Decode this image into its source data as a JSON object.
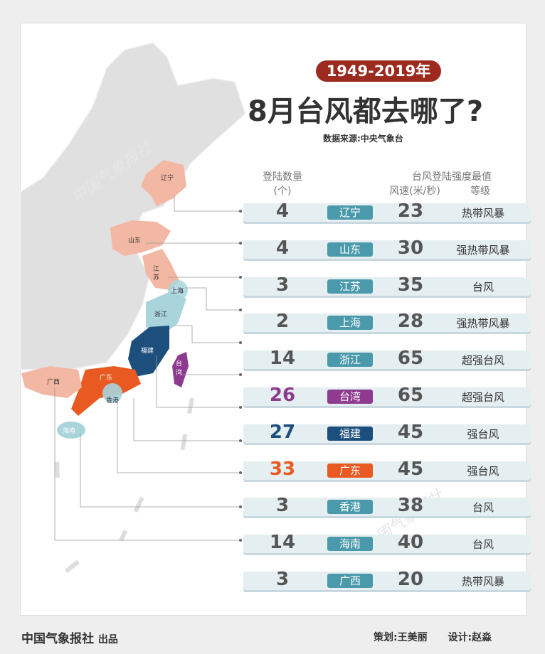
{
  "header": {
    "year_range": "1949-2019年",
    "title": "8月台风都去哪了?",
    "source": "数据来源:中央气象台"
  },
  "columns": {
    "count_line1": "登陆数量",
    "count_line2": "(个)",
    "intensity_title": "台风登陆强度最值",
    "speed": "风速(米/秒)",
    "level": "等级"
  },
  "chart_data": {
    "type": "table",
    "rows": [
      {
        "province": "辽宁",
        "count": 4,
        "speed": 23,
        "level": "热带风暴"
      },
      {
        "province": "山东",
        "count": 4,
        "speed": 30,
        "level": "强热带风暴"
      },
      {
        "province": "江苏",
        "count": 3,
        "speed": 35,
        "level": "台风"
      },
      {
        "province": "上海",
        "count": 2,
        "speed": 28,
        "level": "强热带风暴"
      },
      {
        "province": "浙江",
        "count": 14,
        "speed": 65,
        "level": "超强台风"
      },
      {
        "province": "台湾",
        "count": 26,
        "speed": 65,
        "level": "超强台风"
      },
      {
        "province": "福建",
        "count": 27,
        "speed": 45,
        "level": "强台风"
      },
      {
        "province": "广东",
        "count": 33,
        "speed": 45,
        "level": "强台风"
      },
      {
        "province": "香港",
        "count": 3,
        "speed": 38,
        "level": "台风"
      },
      {
        "province": "海南",
        "count": 14,
        "speed": 40,
        "level": "台风"
      },
      {
        "province": "广西",
        "count": 3,
        "speed": 20,
        "level": "热带风暴"
      }
    ]
  },
  "colors": {
    "default_count": "#555555",
    "default_tag": "#4a9aab",
    "taiwan": "#8e3a8f",
    "fujian": "#1d4f7c",
    "guangdong": "#e85a22",
    "low_region": "#f3b8a3",
    "mid_region": "#a9d4dc",
    "title_pill": "#9c2a1f"
  },
  "highlights": {
    "台湾": "#8e3a8f",
    "福建": "#1d4f7c",
    "广东": "#e85a22"
  },
  "map_labels": {
    "liaoning": "辽宁",
    "shandong": "山东",
    "jiangsu_1": "江",
    "jiangsu_2": "苏",
    "shanghai": "上海",
    "zhejiang": "浙江",
    "fujian": "福建",
    "taiwan_1": "台",
    "taiwan_2": "湾",
    "guangdong": "广东",
    "hongkong": "香港",
    "guangxi": "广西",
    "hainan": "海南"
  },
  "watermark": "中国气象报社",
  "footer": {
    "publisher": "中国气象报社",
    "publisher_suffix": "出品",
    "planner": "策划:王美丽",
    "designer": "设计:赵淼"
  }
}
